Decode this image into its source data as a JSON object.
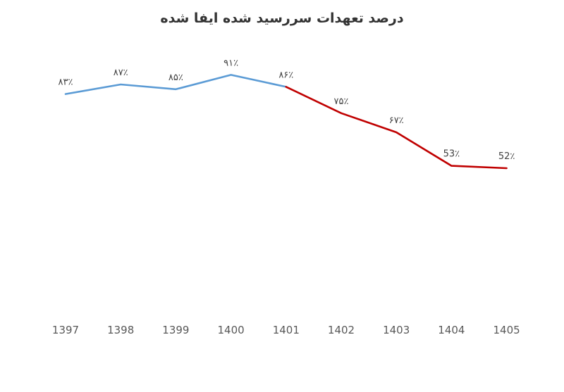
{
  "chart_data": {
    "type": "line",
    "title": "درصد تعهدات سررسید شده ایفا شده",
    "xlabel": "",
    "ylabel": "",
    "categories": [
      "1397",
      "1398",
      "1399",
      "1400",
      "1401",
      "1402",
      "1403",
      "1404",
      "1405"
    ],
    "data_labels": [
      "۸۳٪",
      "۸۷٪",
      "۸۵٪",
      "۹۱٪",
      "۸۶٪",
      "۷۵٪",
      "۶۷٪",
      "53٪",
      "52٪"
    ],
    "series": [
      {
        "values": [
          83,
          87,
          85,
          91,
          86,
          null,
          null,
          null,
          null
        ],
        "color": "#5b9bd5"
      },
      {
        "values": [
          null,
          null,
          null,
          null,
          86,
          75,
          67,
          53,
          52
        ],
        "color": "#c00000"
      }
    ],
    "ylim": [
      0,
      100
    ],
    "grid": false,
    "legend": "none"
  }
}
